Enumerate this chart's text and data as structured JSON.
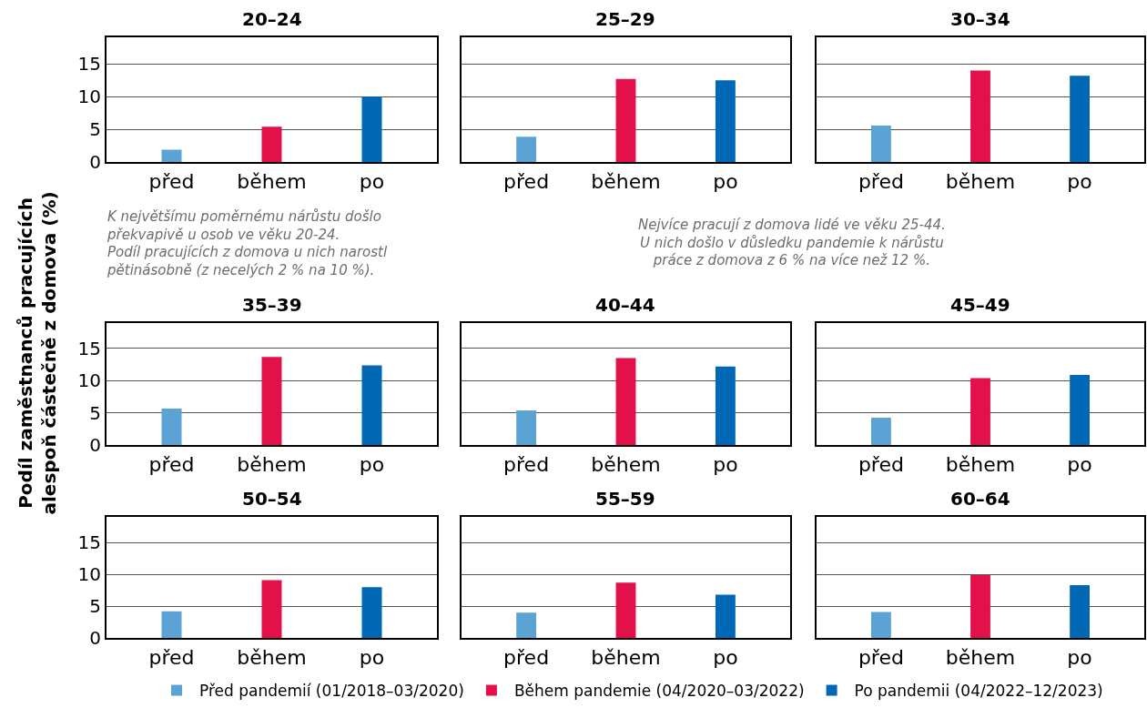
{
  "chart_data": [
    {
      "type": "bar",
      "title": "20–24",
      "categories": [
        "před",
        "během",
        "po"
      ],
      "legend": "bottom",
      "ylim": [
        0,
        19
      ],
      "yticks": [
        0,
        5,
        10,
        15
      ],
      "grid": "y",
      "annotations": [
        "K největšímu poměrnému nárůstu došlo\npřekvapivě u osob ve věku 20-24.\nPodíl pracujících z domova u nich narostl\npětinásobně (z necelých 2 % na 10 %)."
      ],
      "series": [
        {
          "name": "Před pandemií (01/2018–03/2020)",
          "color": "#5ba3d5",
          "values": [
            1.9,
            null,
            null
          ]
        },
        {
          "name": "Během pandemie (04/2020–03/2022)",
          "color": "#e2114a",
          "values": [
            null,
            5.4,
            null
          ]
        },
        {
          "name": "Po pandemii (04/2022–12/2023)",
          "color": "#0068b4",
          "values": [
            null,
            null,
            10.0
          ]
        }
      ]
    },
    {
      "type": "bar",
      "title": "25–29",
      "categories": [
        "před",
        "během",
        "po"
      ],
      "ylim": [
        0,
        19
      ],
      "yticks": [
        0,
        5,
        10,
        15
      ],
      "grid": "y",
      "tick_labels": "x",
      "annotations": [
        "Nejvíce pracují z domova lidé ve věku 25-44.\nU nich došlo v důsledku pandemie k nárůstu\npráce z domova z 6 % na více než 12 %."
      ],
      "series": [
        {
          "color": "#5ba3d5",
          "values": [
            3.9,
            null,
            null
          ]
        },
        {
          "color": "#e2114a",
          "values": [
            null,
            12.7,
            null
          ]
        },
        {
          "color": "#0068b4",
          "values": [
            null,
            null,
            12.5
          ]
        }
      ]
    },
    {
      "type": "bar",
      "title": "30–34",
      "categories": [
        "před",
        "během",
        "po"
      ],
      "ylim": [
        0,
        19
      ],
      "yticks": [
        0,
        5,
        10,
        15
      ],
      "grid": "y",
      "tick_labels": "x",
      "series": [
        {
          "color": "#5ba3d5",
          "values": [
            5.6,
            null,
            null
          ]
        },
        {
          "color": "#e2114a",
          "values": [
            null,
            14.0,
            null
          ]
        },
        {
          "color": "#0068b4",
          "values": [
            null,
            null,
            13.2
          ]
        }
      ]
    },
    {
      "type": "bar",
      "title": "35–39",
      "categories": [
        "před",
        "během",
        "po"
      ],
      "ylim": [
        0,
        19
      ],
      "yticks": [
        0,
        5,
        10,
        15
      ],
      "grid": "y",
      "ylabel": "Podíl zaměstnanců pracujících\nalespoň částečně z domova (%)",
      "series": [
        {
          "color": "#5ba3d5",
          "values": [
            5.7,
            null,
            null
          ]
        },
        {
          "color": "#e2114a",
          "values": [
            null,
            13.7,
            null
          ]
        },
        {
          "color": "#0068b4",
          "values": [
            null,
            null,
            12.4
          ]
        }
      ]
    },
    {
      "type": "bar",
      "title": "40–44",
      "categories": [
        "před",
        "během",
        "po"
      ],
      "ylim": [
        0,
        19
      ],
      "yticks": [
        0,
        5,
        10,
        15
      ],
      "grid": "y",
      "tick_labels": "x",
      "series": [
        {
          "color": "#5ba3d5",
          "values": [
            5.4,
            null,
            null
          ]
        },
        {
          "color": "#e2114a",
          "values": [
            null,
            13.5,
            null
          ]
        },
        {
          "color": "#0068b4",
          "values": [
            null,
            null,
            12.2
          ]
        }
      ]
    },
    {
      "type": "bar",
      "title": "45–49",
      "categories": [
        "před",
        "během",
        "po"
      ],
      "ylim": [
        0,
        19
      ],
      "yticks": [
        0,
        5,
        10,
        15
      ],
      "grid": "y",
      "tick_labels": "x",
      "series": [
        {
          "color": "#5ba3d5",
          "values": [
            4.3,
            null,
            null
          ]
        },
        {
          "color": "#e2114a",
          "values": [
            null,
            10.4,
            null
          ]
        },
        {
          "color": "#0068b4",
          "values": [
            null,
            null,
            10.9
          ]
        }
      ]
    },
    {
      "type": "bar",
      "title": "50–54",
      "categories": [
        "před",
        "během",
        "po"
      ],
      "ylim": [
        0,
        19
      ],
      "yticks": [
        0,
        5,
        10,
        15
      ],
      "grid": "y",
      "series": [
        {
          "color": "#5ba3d5",
          "values": [
            4.2,
            null,
            null
          ]
        },
        {
          "color": "#e2114a",
          "values": [
            null,
            9.1,
            null
          ]
        },
        {
          "color": "#0068b4",
          "values": [
            null,
            null,
            8.0
          ]
        }
      ]
    },
    {
      "type": "bar",
      "title": "55–59",
      "categories": [
        "před",
        "během",
        "po"
      ],
      "ylim": [
        0,
        19
      ],
      "yticks": [
        0,
        5,
        10,
        15
      ],
      "grid": "y",
      "tick_labels": "x",
      "series": [
        {
          "color": "#5ba3d5",
          "values": [
            4.0,
            null,
            null
          ]
        },
        {
          "color": "#e2114a",
          "values": [
            null,
            8.7,
            null
          ]
        },
        {
          "color": "#0068b4",
          "values": [
            null,
            null,
            6.8
          ]
        }
      ]
    },
    {
      "type": "bar",
      "title": "60–64",
      "categories": [
        "před",
        "během",
        "po"
      ],
      "ylim": [
        0,
        19
      ],
      "yticks": [
        0,
        5,
        10,
        15
      ],
      "grid": "y",
      "tick_labels": "x",
      "series": [
        {
          "color": "#5ba3d5",
          "values": [
            4.1,
            null,
            null
          ]
        },
        {
          "color": "#e2114a",
          "values": [
            null,
            9.9,
            null
          ]
        },
        {
          "color": "#0068b4",
          "values": [
            null,
            null,
            8.3
          ]
        }
      ]
    }
  ]
}
